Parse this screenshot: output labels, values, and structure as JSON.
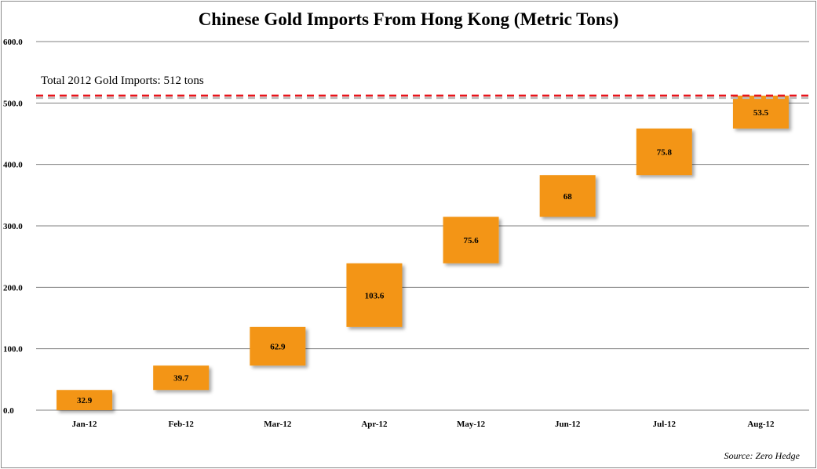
{
  "chart_data": {
    "type": "waterfall",
    "title": "Chinese Gold Imports From Hong Kong (Metric Tons)",
    "categories": [
      "Jan-12",
      "Feb-12",
      "Mar-12",
      "Apr-12",
      "May-12",
      "Jun-12",
      "Jul-12",
      "Aug-12"
    ],
    "values": [
      32.9,
      39.7,
      62.9,
      103.6,
      75.6,
      68,
      75.8,
      53.5
    ],
    "value_labels": [
      "32.9",
      "39.7",
      "62.9",
      "103.6",
      "75.6",
      "68",
      "75.8",
      "53.5"
    ],
    "ylim": [
      0,
      600
    ],
    "yticks": [
      0,
      100,
      200,
      300,
      400,
      500,
      600
    ],
    "ytick_labels": [
      "0.0",
      "100.0",
      "200.0",
      "300.0",
      "400.0",
      "500.0",
      "600.0"
    ],
    "grid": true,
    "reference_line": {
      "value": 512,
      "label": "Total 2012 Gold Imports:  512 tons",
      "color": "#e8141b"
    },
    "bar_color": "#f39512",
    "source": "Source: Zero Hedge"
  }
}
